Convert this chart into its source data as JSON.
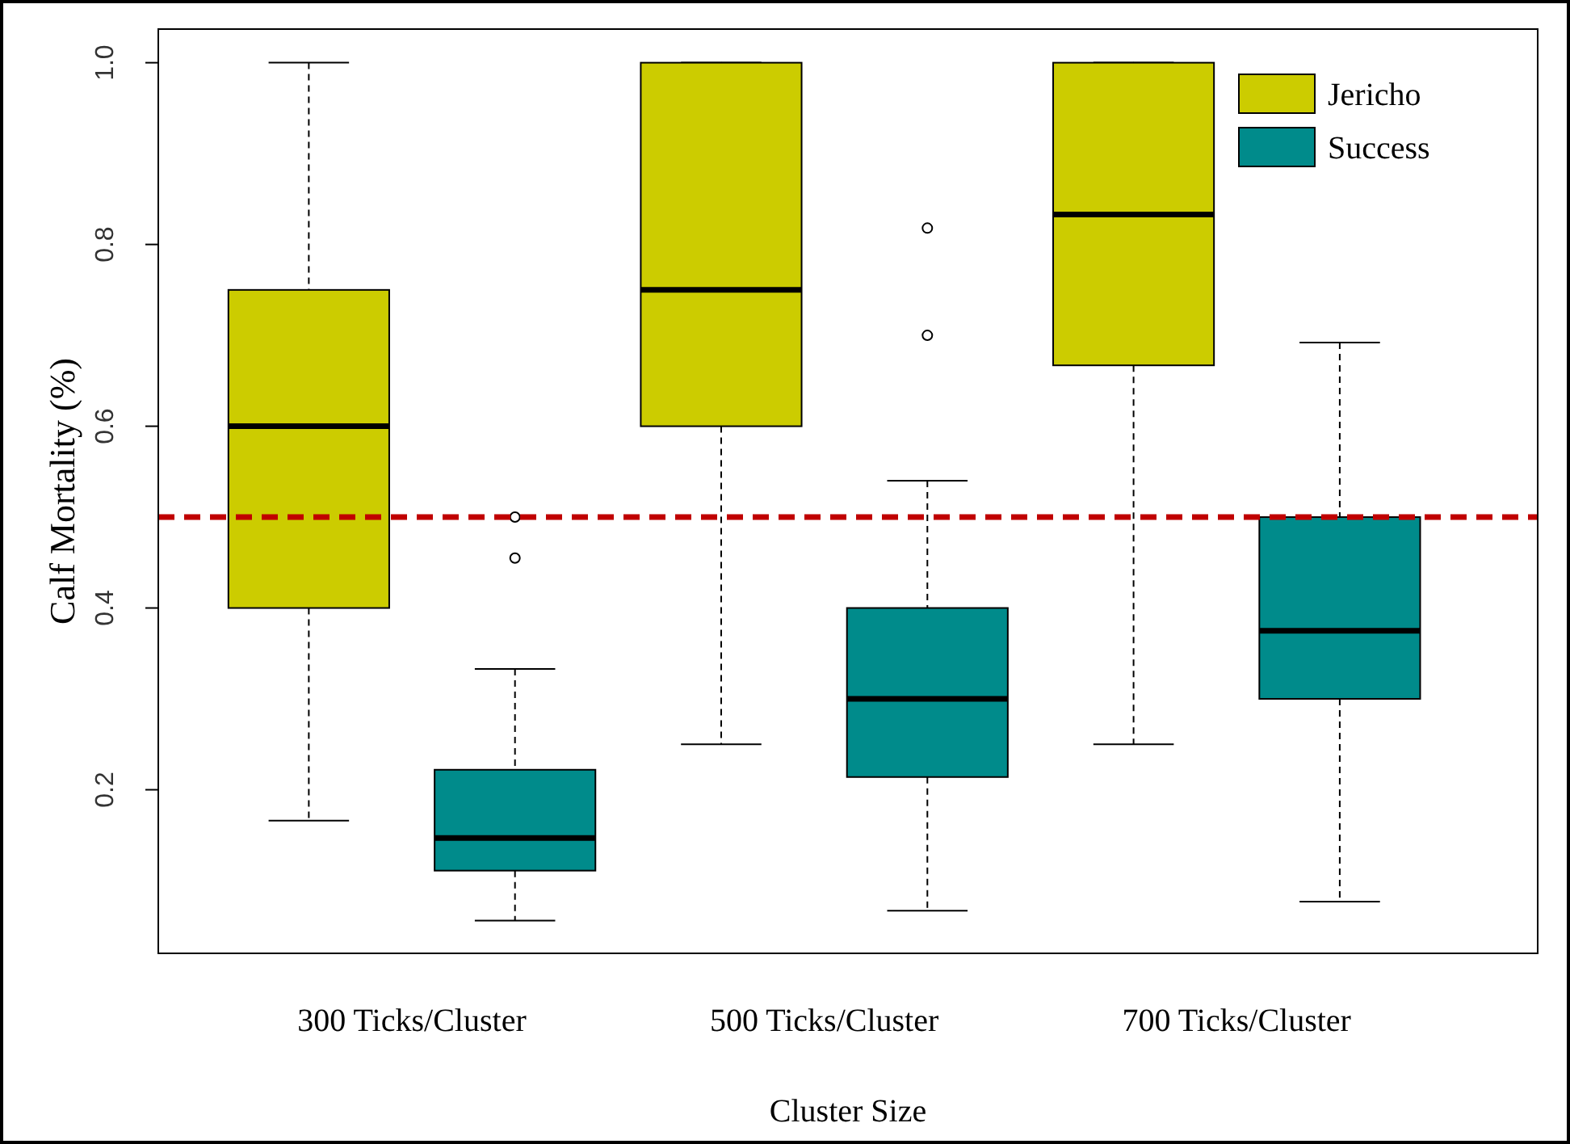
{
  "chart_data": {
    "type": "box",
    "xlabel": "Cluster Size",
    "ylabel": "Calf Mortality (%)",
    "categories": [
      "300 Ticks/Cluster",
      "500 Ticks/Cluster",
      "700 Ticks/Cluster"
    ],
    "ylim": [
      0.02,
      1.037
    ],
    "yticks": [
      0.2,
      0.4,
      0.6,
      0.8,
      {
        "value": 1,
        "label": "1.0"
      }
    ],
    "grid": false,
    "legend": "top right",
    "series": [
      {
        "name": "Jericho",
        "color": "#cccc00",
        "boxes": [
          {
            "low": 0.166,
            "q1": 0.4,
            "median": 0.6,
            "q3": 0.75,
            "high": 1
          },
          {
            "low": 0.25,
            "q1": 0.6,
            "median": 0.75,
            "q3": 1,
            "high": 1
          },
          {
            "low": 0.25,
            "q1": 0.667,
            "median": 0.833,
            "q3": 1,
            "high": 1
          }
        ]
      },
      {
        "name": "Success",
        "color": "#008b8b",
        "boxes": [
          {
            "low": 0.056,
            "q1": 0.111,
            "median": 0.147,
            "q3": 0.222,
            "high": 0.333,
            "outliers": [
              0.5,
              0.455
            ]
          },
          {
            "low": 0.067,
            "q1": 0.214,
            "median": 0.3,
            "q3": 0.4,
            "high": 0.54,
            "outliers": [
              0.818,
              0.7
            ]
          },
          {
            "low": 0.077,
            "q1": 0.3,
            "median": 0.375,
            "q3": 0.5,
            "high": 0.692
          }
        ]
      }
    ],
    "ref_lines": [
      {
        "axis": "y",
        "value": 0.5,
        "color": "#c00000",
        "line_style": "dashed"
      }
    ]
  }
}
